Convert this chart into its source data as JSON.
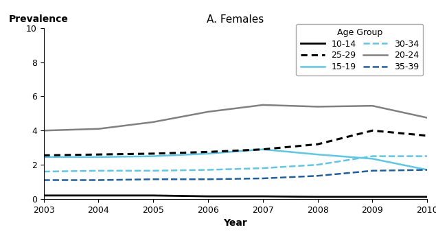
{
  "title": "A. Females",
  "xlabel": "Year",
  "ylabel": "Prevalence",
  "years": [
    2003,
    2004,
    2005,
    2006,
    2007,
    2008,
    2009,
    2010
  ],
  "series": [
    {
      "label": "10-14",
      "color": "#000000",
      "linestyle": "solid",
      "linewidth": 2.0,
      "values": [
        0.2,
        0.2,
        0.2,
        0.15,
        0.15,
        0.12,
        0.12,
        0.12
      ]
    },
    {
      "label": "15-19",
      "color": "#5bc8e8",
      "linestyle": "solid",
      "linewidth": 1.8,
      "values": [
        2.45,
        2.45,
        2.5,
        2.65,
        2.9,
        2.6,
        2.35,
        1.7
      ]
    },
    {
      "label": "20-24",
      "color": "#808080",
      "linestyle": "solid",
      "linewidth": 1.8,
      "values": [
        4.0,
        4.1,
        4.5,
        5.1,
        5.5,
        5.4,
        5.45,
        4.75
      ]
    },
    {
      "label": "25-29",
      "color": "#000000",
      "linestyle": "dotted",
      "linewidth": 2.2,
      "values": [
        2.55,
        2.6,
        2.65,
        2.75,
        2.9,
        3.2,
        4.0,
        3.7
      ]
    },
    {
      "label": "30-34",
      "color": "#5bc8e8",
      "linestyle": "dashed",
      "linewidth": 1.8,
      "values": [
        1.6,
        1.65,
        1.65,
        1.7,
        1.8,
        2.0,
        2.5,
        2.5
      ]
    },
    {
      "label": "35-39",
      "color": "#1a5fa8",
      "linestyle": "dashed",
      "linewidth": 1.8,
      "values": [
        1.1,
        1.1,
        1.15,
        1.15,
        1.2,
        1.35,
        1.65,
        1.7
      ]
    }
  ],
  "ylim": [
    0,
    10
  ],
  "yticks": [
    0,
    2,
    4,
    6,
    8,
    10
  ],
  "xlim": [
    2003,
    2010
  ],
  "legend_title": "Age Group",
  "background_color": "#ffffff",
  "title_fontsize": 11,
  "axis_label_fontsize": 10,
  "tick_fontsize": 9,
  "legend_fontsize": 9
}
